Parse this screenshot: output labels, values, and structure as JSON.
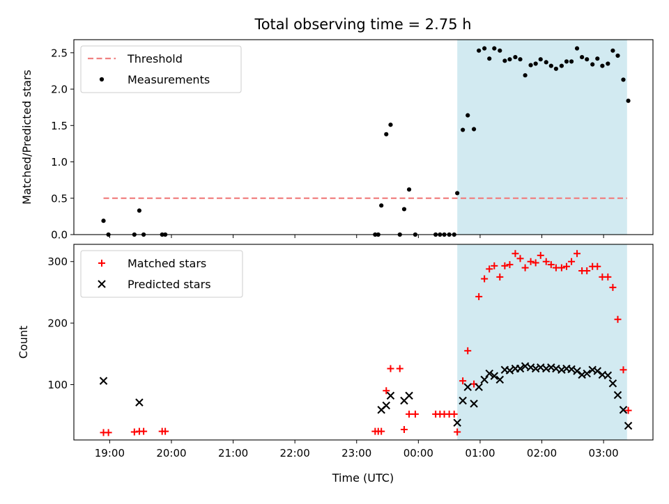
{
  "figure": {
    "title": "Total observing time = 2.75 h",
    "xlabel": "Time (UTC)",
    "x_tick_labels": [
      "19:00",
      "20:00",
      "21:00",
      "22:00",
      "23:00",
      "00:00",
      "01:00",
      "02:00",
      "03:00"
    ],
    "highlight_color": "#add8e6",
    "highlight_label": "observing window 00:38–03:23 UTC"
  },
  "chart_data": [
    {
      "type": "scatter",
      "ylabel": "Matched/Predicted stars",
      "ylim": [
        0,
        2.68
      ],
      "xlim_hours": [
        18.42,
        27.8
      ],
      "yticks": [
        "0.0",
        "0.5",
        "1.0",
        "1.5",
        "2.0",
        "2.5"
      ],
      "ytick_values": [
        0,
        0.5,
        1.0,
        1.5,
        2.0,
        2.5
      ],
      "legend_position": "upper-left",
      "highlight_span_hours": [
        24.63,
        27.38
      ],
      "series": [
        {
          "name": "Threshold",
          "kind": "dashed-line",
          "color": "#f08080",
          "x_hours": [
            18.9,
            27.38
          ],
          "y": [
            0.5,
            0.5
          ]
        },
        {
          "name": "Measurements",
          "kind": "dots",
          "color": "#000000",
          "points": [
            [
              18.9,
              0.19
            ],
            [
              18.98,
              0.0
            ],
            [
              19.4,
              0.0
            ],
            [
              19.48,
              0.33
            ],
            [
              19.55,
              0.0
            ],
            [
              19.85,
              0.0
            ],
            [
              19.9,
              0.0
            ],
            [
              23.3,
              0.0
            ],
            [
              23.35,
              0.0
            ],
            [
              23.4,
              0.4
            ],
            [
              23.48,
              1.38
            ],
            [
              23.55,
              1.51
            ],
            [
              23.7,
              0.0
            ],
            [
              23.77,
              0.35
            ],
            [
              23.85,
              0.62
            ],
            [
              23.95,
              0.0
            ],
            [
              24.28,
              0.0
            ],
            [
              24.35,
              0.0
            ],
            [
              24.42,
              0.0
            ],
            [
              24.5,
              0.0
            ],
            [
              24.58,
              0.0
            ],
            [
              24.63,
              0.57
            ],
            [
              24.72,
              1.44
            ],
            [
              24.8,
              1.64
            ],
            [
              24.9,
              1.45
            ],
            [
              24.98,
              2.53
            ],
            [
              25.07,
              2.56
            ],
            [
              25.15,
              2.42
            ],
            [
              25.23,
              2.56
            ],
            [
              25.32,
              2.53
            ],
            [
              25.4,
              2.39
            ],
            [
              25.48,
              2.41
            ],
            [
              25.57,
              2.44
            ],
            [
              25.65,
              2.41
            ],
            [
              25.73,
              2.19
            ],
            [
              25.82,
              2.33
            ],
            [
              25.9,
              2.35
            ],
            [
              25.98,
              2.41
            ],
            [
              26.07,
              2.37
            ],
            [
              26.15,
              2.32
            ],
            [
              26.23,
              2.28
            ],
            [
              26.32,
              2.32
            ],
            [
              26.4,
              2.38
            ],
            [
              26.48,
              2.38
            ],
            [
              26.57,
              2.56
            ],
            [
              26.65,
              2.44
            ],
            [
              26.73,
              2.41
            ],
            [
              26.82,
              2.34
            ],
            [
              26.9,
              2.42
            ],
            [
              26.98,
              2.32
            ],
            [
              27.07,
              2.35
            ],
            [
              27.15,
              2.53
            ],
            [
              27.23,
              2.46
            ],
            [
              27.32,
              2.13
            ],
            [
              27.4,
              1.84
            ]
          ]
        }
      ]
    },
    {
      "type": "scatter",
      "ylabel": "Count",
      "ylim": [
        10,
        328
      ],
      "xlim_hours": [
        18.42,
        27.8
      ],
      "yticks": [
        "100",
        "200",
        "300"
      ],
      "ytick_values": [
        100,
        200,
        300
      ],
      "legend_position": "upper-left",
      "highlight_span_hours": [
        24.63,
        27.38
      ],
      "series": [
        {
          "name": "Matched stars",
          "kind": "plus",
          "color": "#ff0000",
          "points": [
            [
              18.9,
              22
            ],
            [
              18.98,
              22
            ],
            [
              19.4,
              23
            ],
            [
              19.48,
              24
            ],
            [
              19.55,
              24
            ],
            [
              19.85,
              24
            ],
            [
              19.9,
              24
            ],
            [
              23.3,
              24
            ],
            [
              23.35,
              24
            ],
            [
              23.4,
              24
            ],
            [
              23.48,
              90
            ],
            [
              23.55,
              126
            ],
            [
              23.7,
              126
            ],
            [
              23.77,
              27
            ],
            [
              23.85,
              52
            ],
            [
              23.95,
              52
            ],
            [
              24.28,
              52
            ],
            [
              24.35,
              52
            ],
            [
              24.42,
              52
            ],
            [
              24.5,
              52
            ],
            [
              24.58,
              52
            ],
            [
              24.63,
              23
            ],
            [
              24.72,
              106
            ],
            [
              24.8,
              155
            ],
            [
              24.9,
              101
            ],
            [
              24.98,
              243
            ],
            [
              25.07,
              272
            ],
            [
              25.15,
              288
            ],
            [
              25.23,
              293
            ],
            [
              25.32,
              275
            ],
            [
              25.4,
              293
            ],
            [
              25.48,
              295
            ],
            [
              25.57,
              313
            ],
            [
              25.65,
              305
            ],
            [
              25.73,
              290
            ],
            [
              25.82,
              300
            ],
            [
              25.9,
              298
            ],
            [
              25.98,
              310
            ],
            [
              26.07,
              300
            ],
            [
              26.15,
              295
            ],
            [
              26.23,
              290
            ],
            [
              26.32,
              290
            ],
            [
              26.4,
              292
            ],
            [
              26.48,
              300
            ],
            [
              26.57,
              313
            ],
            [
              26.65,
              285
            ],
            [
              26.73,
              285
            ],
            [
              26.82,
              292
            ],
            [
              26.9,
              292
            ],
            [
              26.98,
              275
            ],
            [
              27.07,
              275
            ],
            [
              27.15,
              258
            ],
            [
              27.23,
              206
            ],
            [
              27.32,
              124
            ],
            [
              27.4,
              58
            ]
          ]
        },
        {
          "name": "Predicted stars",
          "kind": "cross",
          "color": "#000000",
          "points": [
            [
              18.9,
              106
            ],
            [
              19.48,
              71
            ],
            [
              23.4,
              59
            ],
            [
              23.48,
              66
            ],
            [
              23.55,
              82
            ],
            [
              23.77,
              74
            ],
            [
              23.85,
              82
            ],
            [
              24.63,
              38
            ],
            [
              24.72,
              74
            ],
            [
              24.8,
              96
            ],
            [
              24.9,
              69
            ],
            [
              24.98,
              96
            ],
            [
              25.07,
              108
            ],
            [
              25.15,
              118
            ],
            [
              25.23,
              114
            ],
            [
              25.32,
              108
            ],
            [
              25.4,
              124
            ],
            [
              25.48,
              123
            ],
            [
              25.57,
              126
            ],
            [
              25.65,
              126
            ],
            [
              25.73,
              130
            ],
            [
              25.82,
              128
            ],
            [
              25.9,
              126
            ],
            [
              25.98,
              128
            ],
            [
              26.07,
              126
            ],
            [
              26.15,
              128
            ],
            [
              26.23,
              126
            ],
            [
              26.32,
              124
            ],
            [
              26.4,
              126
            ],
            [
              26.48,
              125
            ],
            [
              26.57,
              122
            ],
            [
              26.65,
              116
            ],
            [
              26.73,
              118
            ],
            [
              26.82,
              124
            ],
            [
              26.9,
              122
            ],
            [
              26.98,
              116
            ],
            [
              27.07,
              115
            ],
            [
              27.15,
              102
            ],
            [
              27.23,
              83
            ],
            [
              27.32,
              59
            ],
            [
              27.4,
              33
            ]
          ]
        }
      ]
    }
  ]
}
